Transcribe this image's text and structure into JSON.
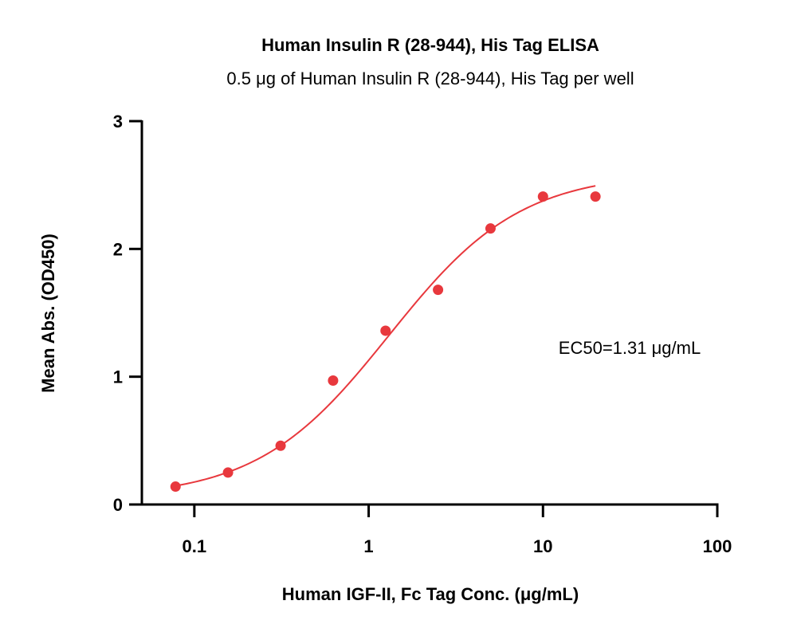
{
  "chart_data": {
    "type": "scatter",
    "title": "Human Insulin R (28-944), His Tag ELISA",
    "subtitle": "0.5 μg of Human Insulin R (28-944), His Tag per well",
    "xlabel": "Human IGF-II, Fc Tag Conc. (μg/mL)",
    "ylabel": "Mean Abs. (OD450)",
    "xscale": "log",
    "xlim": [
      0.05,
      100
    ],
    "ylim": [
      0,
      3
    ],
    "x_ticks": [
      {
        "value": 0.1,
        "label": "0.1"
      },
      {
        "value": 1,
        "label": "1"
      },
      {
        "value": 10,
        "label": "10"
      },
      {
        "value": 100,
        "label": "100"
      }
    ],
    "y_ticks": [
      {
        "value": 0,
        "label": "0"
      },
      {
        "value": 1,
        "label": "1"
      },
      {
        "value": 2,
        "label": "2"
      },
      {
        "value": 3,
        "label": "3"
      }
    ],
    "grid": false,
    "series": [
      {
        "color": "#e8383d",
        "marker": "circle",
        "points": [
          {
            "x": 0.078,
            "y": 0.14
          },
          {
            "x": 0.156,
            "y": 0.25
          },
          {
            "x": 0.3125,
            "y": 0.46
          },
          {
            "x": 0.625,
            "y": 0.97
          },
          {
            "x": 1.25,
            "y": 1.36
          },
          {
            "x": 2.5,
            "y": 1.68
          },
          {
            "x": 5,
            "y": 2.16
          },
          {
            "x": 10,
            "y": 2.41
          },
          {
            "x": 20,
            "y": 2.41
          }
        ]
      }
    ],
    "fit": {
      "model": "4PL",
      "bottom": 0.05,
      "top": 2.6,
      "ec50": 1.31,
      "hill": 1.15,
      "x_range": [
        0.078,
        20
      ],
      "color": "#e8383d"
    },
    "annotation": "EC50=1.31 μg/mL"
  }
}
